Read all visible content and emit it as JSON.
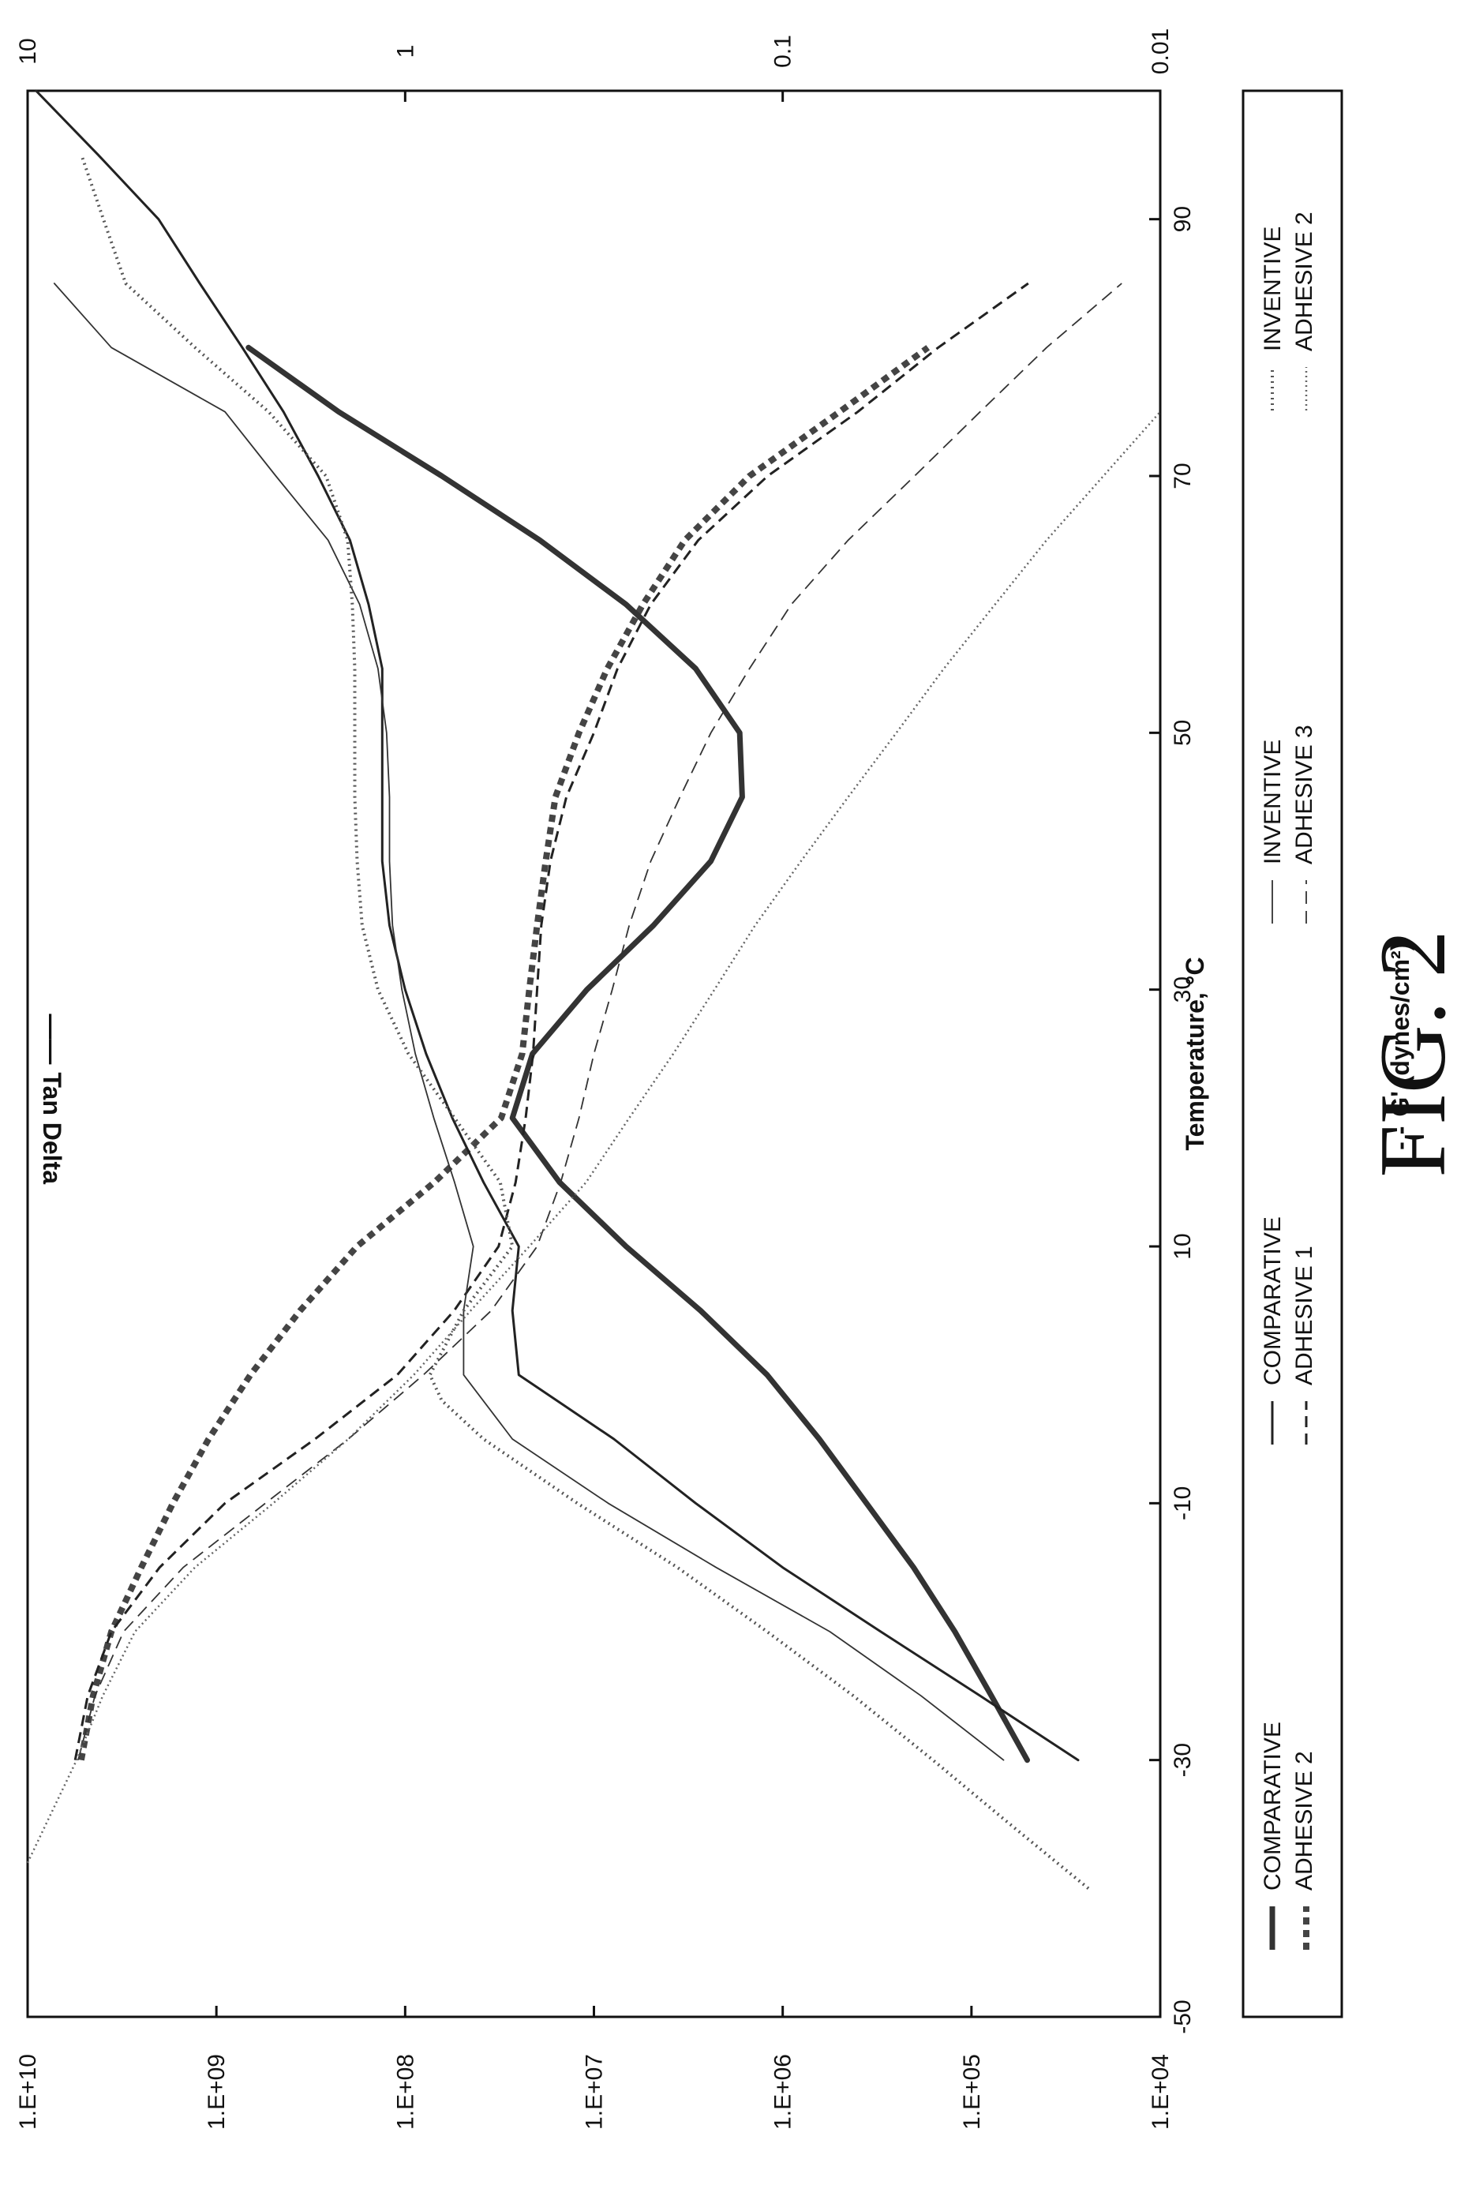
{
  "figure_caption": "FIG. 2",
  "chart_data": {
    "type": "line",
    "xlabel": "Temperature, °C",
    "ylabel": "G' (dynes/cm²)",
    "ylabel_prefix": "- - -",
    "y2label": "Tan Delta",
    "y2label_prefix": "——",
    "xlim": [
      -50,
      100
    ],
    "x_ticks": [
      -50,
      -30,
      -10,
      10,
      30,
      50,
      70,
      90
    ],
    "x_tick_labels": [
      "-50",
      "-30",
      "-10",
      "10",
      "30",
      "50",
      "70",
      "90"
    ],
    "ylim": [
      10000,
      10000000000
    ],
    "y_scale": "log",
    "y_ticks": [
      10000,
      100000,
      1000000,
      10000000,
      100000000,
      1000000000,
      10000000000
    ],
    "y_tick_labels": [
      "1.E+04",
      "1.E+05",
      "1.E+06",
      "1.E+07",
      "1.E+08",
      "1.E+09",
      "1.E+10"
    ],
    "y2lim": [
      0.01,
      10
    ],
    "y2_scale": "log",
    "y2_ticks": [
      0.01,
      0.1,
      1,
      10
    ],
    "y2_tick_labels": [
      "0.01",
      "0.1",
      "1",
      "10"
    ],
    "grid": false,
    "legend_position": "below",
    "legend": [
      {
        "text": "COMPARATIVE\nADHESIVE 2",
        "tan_style": "thick-solid",
        "g_style": "thick-dash"
      },
      {
        "text": "COMPARATIVE\nADHESIVE 1",
        "tan_style": "solid",
        "g_style": "dash"
      },
      {
        "text": "INVENTIVE\nADHESIVE 3",
        "tan_style": "thin-solid",
        "g_style": "thin-dash"
      },
      {
        "text": "INVENTIVE\nADHESIVE 2",
        "tan_style": "dotted",
        "g_style": "thin-dotted"
      }
    ],
    "series": [
      {
        "legend_index": 0,
        "axis": "y",
        "quantity": "G'",
        "x": [
          -30,
          -25,
          -20,
          -15,
          -10,
          -5,
          0,
          5,
          10,
          15,
          20,
          25,
          30,
          35,
          40,
          45,
          50,
          55,
          60,
          65,
          70,
          75,
          80
        ],
        "y": [
          5200000000.0,
          4500000000.0,
          3600000000.0,
          2500000000.0,
          1700000000.0,
          1100000000.0,
          660000000.0,
          360000000.0,
          180000000.0,
          70000000.0,
          31000000.0,
          24000000.0,
          22000000.0,
          20000000.0,
          18000000.0,
          16000000.0,
          12000000.0,
          8500000.0,
          5500000.0,
          3300000.0,
          1500000.0,
          500000.0,
          170000.0
        ]
      },
      {
        "legend_index": 0,
        "axis": "y2",
        "quantity": "Tan Delta",
        "x": [
          -30,
          -25,
          -20,
          -15,
          -10,
          -5,
          0,
          5,
          10,
          15,
          20,
          25,
          30,
          35,
          40,
          45,
          50,
          55,
          60,
          65,
          70,
          75,
          80
        ],
        "y": [
          0.0225,
          0.028,
          0.035,
          0.045,
          0.06,
          0.08,
          0.11,
          0.165,
          0.26,
          0.39,
          0.52,
          0.46,
          0.33,
          0.22,
          0.155,
          0.128,
          0.13,
          0.17,
          0.26,
          0.44,
          0.8,
          1.5,
          2.6
        ]
      },
      {
        "legend_index": 1,
        "axis": "y",
        "quantity": "G'",
        "x": [
          -30,
          -25,
          -20,
          -15,
          -10,
          -5,
          0,
          5,
          10,
          15,
          20,
          25,
          30,
          35,
          40,
          45,
          50,
          55,
          60,
          65,
          70,
          75,
          80,
          85
        ],
        "y": [
          5600000000.0,
          4800000000.0,
          3600000000.0,
          2000000000.0,
          900000000.0,
          300000000.0,
          110000000.0,
          55000000.0,
          32000000.0,
          26000000.0,
          23000000.0,
          21000000.0,
          20000000.0,
          19000000.0,
          17000000.0,
          14000000.0,
          10000000.0,
          7500000.0,
          5000000.0,
          2800000.0,
          1200000.0,
          400000.0,
          150000.0,
          50000.0
        ]
      },
      {
        "legend_index": 1,
        "axis": "y2",
        "quantity": "Tan Delta",
        "x": [
          -30,
          -25,
          -20,
          -15,
          -10,
          -5,
          0,
          5,
          10,
          15,
          20,
          25,
          30,
          35,
          40,
          45,
          50,
          55,
          60,
          65,
          70,
          75,
          80,
          85,
          90,
          95,
          100
        ],
        "y": [
          0.0165,
          0.03,
          0.055,
          0.1,
          0.17,
          0.28,
          0.5,
          0.52,
          0.5,
          0.62,
          0.75,
          0.88,
          1.0,
          1.1,
          1.15,
          1.15,
          1.15,
          1.15,
          1.25,
          1.4,
          1.7,
          2.1,
          2.7,
          3.5,
          4.5,
          6.5,
          9.5
        ]
      },
      {
        "legend_index": 2,
        "axis": "y",
        "quantity": "G'",
        "x": [
          -30,
          -25,
          -20,
          -15,
          -10,
          -5,
          0,
          5,
          10,
          15,
          20,
          25,
          30,
          35,
          40,
          45,
          50,
          55,
          60,
          65,
          70,
          75,
          80,
          85
        ],
        "y": [
          5400000000.0,
          4400000000.0,
          3100000000.0,
          1500000000.0,
          550000000.0,
          200000000.0,
          80000000.0,
          35000000.0,
          20000000.0,
          15000000.0,
          12000000.0,
          10000000.0,
          8000000.0,
          6500000.0,
          5000000.0,
          3500000.0,
          2400000.0,
          1500000.0,
          900000.0,
          450000.0,
          200000.0,
          90000.0,
          40000.0,
          16000.0
        ]
      },
      {
        "legend_index": 2,
        "axis": "y2",
        "quantity": "Tan Delta",
        "x": [
          -30,
          -25,
          -20,
          -15,
          -10,
          -5,
          0,
          5,
          10,
          15,
          20,
          25,
          30,
          35,
          40,
          45,
          50,
          55,
          60,
          65,
          70,
          75,
          80,
          85
        ],
        "y": [
          0.026,
          0.043,
          0.075,
          0.15,
          0.29,
          0.52,
          0.7,
          0.7,
          0.66,
          0.74,
          0.84,
          0.94,
          1.02,
          1.08,
          1.1,
          1.1,
          1.12,
          1.18,
          1.32,
          1.6,
          2.2,
          3.0,
          6.0,
          8.5
        ]
      },
      {
        "legend_index": 3,
        "axis": "y",
        "quantity": "G'",
        "x": [
          -38,
          -35,
          -30,
          -25,
          -20,
          -15,
          -10,
          -5,
          0,
          5,
          10,
          15,
          20,
          25,
          30,
          35,
          40,
          45,
          50,
          55,
          60,
          65,
          70,
          75
        ],
        "y": [
          10000000000.0,
          8000000000.0,
          5500000000.0,
          4000000000.0,
          2700000000.0,
          1300000000.0,
          500000000.0,
          200000000.0,
          90000000.0,
          45000000.0,
          22000000.0,
          11000000.0,
          6500000.0,
          3800000.0,
          2300000.0,
          1400000.0,
          800000.0,
          450000.0,
          250000.0,
          140000.0,
          75000.0,
          40000.0,
          20000.0,
          10000.0
        ]
      },
      {
        "legend_index": 3,
        "axis": "y2",
        "quantity": "Tan Delta",
        "x": [
          -40,
          -35,
          -30,
          -25,
          -20,
          -15,
          -10,
          -5,
          -2,
          0,
          5,
          10,
          15,
          20,
          25,
          30,
          35,
          40,
          45,
          50,
          55,
          60,
          65,
          70,
          75,
          80,
          85,
          90,
          95
        ],
        "y": [
          0.0155,
          0.025,
          0.04,
          0.065,
          0.11,
          0.19,
          0.35,
          0.62,
          0.8,
          0.86,
          0.7,
          0.52,
          0.56,
          0.74,
          0.98,
          1.18,
          1.3,
          1.34,
          1.36,
          1.36,
          1.36,
          1.38,
          1.42,
          1.62,
          2.3,
          3.6,
          5.5,
          6.3,
          7.2
        ]
      }
    ]
  }
}
